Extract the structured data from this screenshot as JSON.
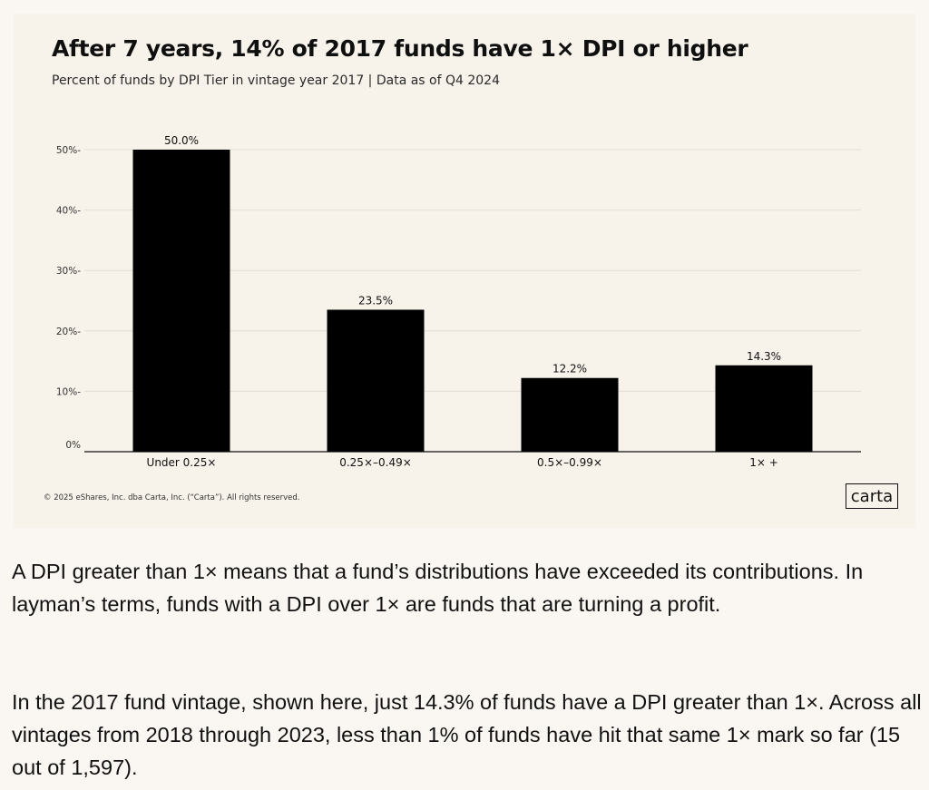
{
  "chart_data": {
    "type": "bar",
    "title": "After 7 years, 14% of 2017 funds have 1× DPI or higher",
    "subtitle": "Percent of funds by DPI Tier in vintage year 2017 | Data as of Q4 2024",
    "categories": [
      "Under 0.25×",
      "0.25×–0.49×",
      "0.5×–0.99×",
      "1× +"
    ],
    "values": [
      50.0,
      23.5,
      12.2,
      14.3
    ],
    "value_labels": [
      "50.0%",
      "23.5%",
      "12.2%",
      "14.3%"
    ],
    "xlabel": "",
    "ylabel": "",
    "ylim": [
      0,
      50
    ],
    "yticks": [
      0,
      10,
      20,
      30,
      40,
      50
    ],
    "ytick_labels": [
      "0%",
      "10%-",
      "20%-",
      "30%-",
      "40%-",
      "50%-"
    ],
    "grid": true,
    "bar_color": "#000000"
  },
  "footer": {
    "copyright": "© 2025 eShares, Inc. dba Carta, Inc. (“Carta”). All rights reserved.",
    "logo_text": "carta"
  },
  "article": {
    "paragraph_1": "A DPI greater than 1× means that a fund’s distributions have exceeded its contributions. In layman’s terms, funds with a DPI over 1× are funds that are turning a profit.",
    "paragraph_2": "In the 2017 fund vintage, shown here, just 14.3% of funds have a DPI greater than 1×. Across all vintages from 2018 through 2023, less than 1% of funds have  hit that same 1× mark so far (15 out of 1,597)."
  },
  "colors": {
    "page_background": "#faf6f1",
    "card_background": "#f7f2ea",
    "bar": "#000000",
    "gridline": "#e4ddd2"
  }
}
